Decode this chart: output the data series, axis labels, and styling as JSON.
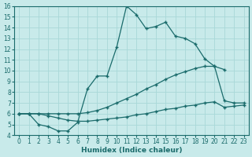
{
  "title": "",
  "xlabel": "Humidex (Indice chaleur)",
  "bg_color": "#c8eaea",
  "grid_color": "#a8d8d8",
  "line_color": "#1a6b6b",
  "xlim": [
    -0.5,
    23.5
  ],
  "ylim": [
    4,
    16
  ],
  "xticks": [
    0,
    1,
    2,
    3,
    4,
    5,
    6,
    7,
    8,
    9,
    10,
    11,
    12,
    13,
    14,
    15,
    16,
    17,
    18,
    19,
    20,
    21,
    22,
    23
  ],
  "yticks": [
    4,
    5,
    6,
    7,
    8,
    9,
    10,
    11,
    12,
    13,
    14,
    15,
    16
  ],
  "line1_x": [
    0,
    1,
    2,
    3,
    4,
    5,
    6,
    7,
    8,
    9,
    10,
    11,
    12,
    13,
    14,
    15,
    16,
    17,
    18,
    19,
    20,
    21
  ],
  "line1_y": [
    6,
    6,
    5,
    4.8,
    4.4,
    4.4,
    5.2,
    8.3,
    9.5,
    9.5,
    12.2,
    16.0,
    15.2,
    13.9,
    14.1,
    14.5,
    13.2,
    13.0,
    12.5,
    11.1,
    10.4,
    10.1
  ],
  "line2_x": [
    0,
    1,
    2,
    3,
    4,
    5,
    6,
    7,
    8,
    9,
    10,
    11,
    12,
    13,
    14,
    15,
    16,
    17,
    18,
    19,
    20,
    21,
    22,
    23
  ],
  "line2_y": [
    6,
    6,
    6,
    6,
    6,
    6,
    6,
    6.1,
    6.3,
    6.6,
    7.0,
    7.4,
    7.8,
    8.3,
    8.7,
    9.2,
    9.6,
    9.9,
    10.2,
    10.4,
    10.4,
    7.2,
    7.0,
    7.0
  ],
  "line3_x": [
    0,
    1,
    2,
    3,
    4,
    5,
    6,
    7,
    8,
    9,
    10,
    11,
    12,
    13,
    14,
    15,
    16,
    17,
    18,
    19,
    20,
    21,
    22,
    23
  ],
  "line3_y": [
    6,
    6,
    6,
    5.8,
    5.6,
    5.4,
    5.3,
    5.3,
    5.4,
    5.5,
    5.6,
    5.7,
    5.9,
    6.0,
    6.2,
    6.4,
    6.5,
    6.7,
    6.8,
    7.0,
    7.1,
    6.6,
    6.7,
    6.8
  ],
  "marker": "+",
  "marker_size": 3.5,
  "line_width": 0.9,
  "label_fontsize": 6.5,
  "tick_fontsize": 5.5
}
